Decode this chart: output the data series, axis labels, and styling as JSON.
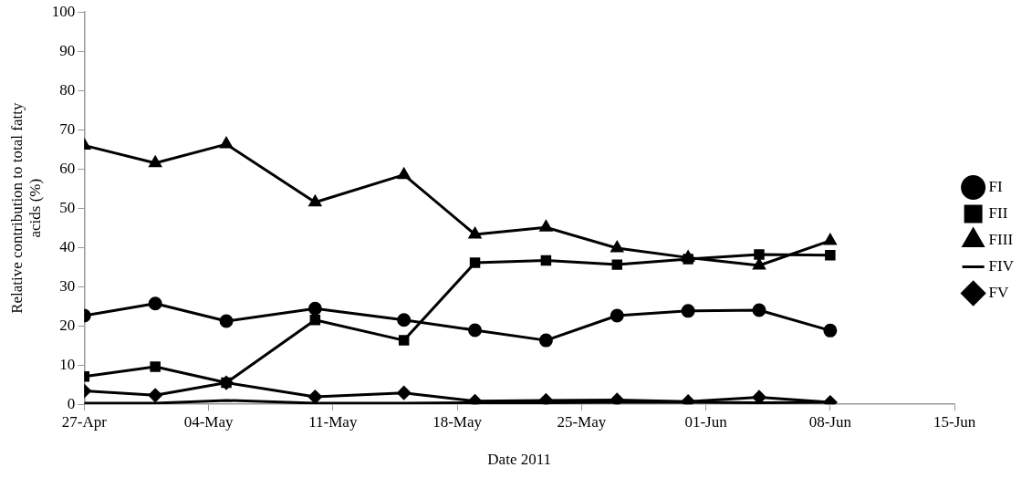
{
  "chart_data": {
    "type": "line",
    "xlabel": "Date 2011",
    "ylabel": "Relative contribution to total fatty acids (%)",
    "x": [
      "2011-04-27",
      "2011-05-01",
      "2011-05-05",
      "2011-05-10",
      "2011-05-15",
      "2011-05-19",
      "2011-05-23",
      "2011-05-27",
      "2011-05-31",
      "2011-06-04",
      "2011-06-08"
    ],
    "series": [
      {
        "name": "FI",
        "color": "#000000",
        "marker": "circle",
        "values": [
          22.6,
          25.7,
          21.2,
          24.4,
          21.5,
          18.9,
          16.3,
          22.6,
          23.8,
          24.0,
          18.8
        ]
      },
      {
        "name": "FII",
        "color": "#000000",
        "marker": "square",
        "values": [
          7.1,
          9.6,
          5.5,
          21.5,
          16.3,
          36.1,
          36.7,
          35.6,
          37.0,
          38.2,
          38.0
        ]
      },
      {
        "name": "FIII",
        "color": "#000000",
        "marker": "triangle",
        "values": [
          66.0,
          61.5,
          66.3,
          51.5,
          58.5,
          43.3,
          45.1,
          39.8,
          37.4,
          35.4,
          41.7
        ]
      },
      {
        "name": "FIV",
        "color": "#000000",
        "marker": "none",
        "values": [
          0.3,
          0.3,
          1.0,
          0.3,
          0.3,
          0.4,
          0.4,
          0.5,
          0.5,
          0.4,
          0.5
        ]
      },
      {
        "name": "FV",
        "color": "#000000",
        "marker": "diamond",
        "values": [
          3.4,
          2.3,
          5.5,
          1.9,
          2.9,
          0.8,
          1.0,
          1.1,
          0.7,
          1.8,
          0.5
        ]
      }
    ],
    "xlim": [
      "2011-04-27",
      "2011-06-15"
    ],
    "xticks": [
      {
        "value": "2011-04-27",
        "label": "27-Apr"
      },
      {
        "value": "2011-05-04",
        "label": "04-May"
      },
      {
        "value": "2011-05-11",
        "label": "11-May"
      },
      {
        "value": "2011-05-18",
        "label": "18-May"
      },
      {
        "value": "2011-05-25",
        "label": "25-May"
      },
      {
        "value": "2011-06-01",
        "label": "01-Jun"
      },
      {
        "value": "2011-06-08",
        "label": "08-Jun"
      },
      {
        "value": "2011-06-15",
        "label": "15-Jun"
      }
    ],
    "ylim": [
      0,
      100
    ],
    "yticks": [
      0,
      10,
      20,
      30,
      40,
      50,
      60,
      70,
      80,
      90,
      100
    ],
    "grid": false,
    "legend": "right",
    "line_style": "solid"
  }
}
